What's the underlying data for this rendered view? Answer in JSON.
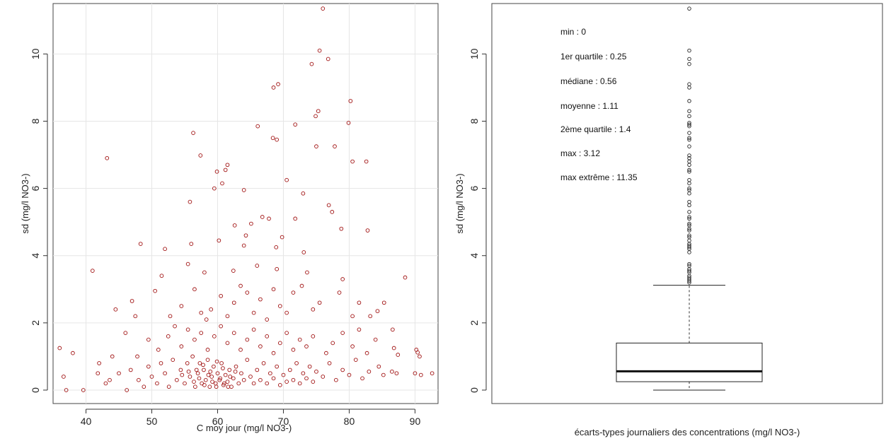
{
  "chart_data": [
    {
      "type": "scatter",
      "xlabel": "C moy jour (mg/l NO3-)",
      "ylabel": "sd (mg/l NO3-)",
      "xlim": [
        35,
        93.5
      ],
      "ylim": [
        -0.4,
        11.5
      ],
      "xticks": [
        40,
        50,
        60,
        70,
        80,
        90
      ],
      "yticks": [
        0,
        2,
        4,
        6,
        8,
        10
      ],
      "grid": true,
      "point_color": "#a01010",
      "points": [
        [
          76.0,
          11.35
        ],
        [
          75.5,
          10.1
        ],
        [
          76.8,
          9.85
        ],
        [
          74.3,
          9.7
        ],
        [
          69.2,
          9.1
        ],
        [
          68.5,
          9.0
        ],
        [
          80.2,
          8.6
        ],
        [
          75.3,
          8.3
        ],
        [
          74.9,
          8.15
        ],
        [
          71.8,
          7.9
        ],
        [
          79.9,
          7.95
        ],
        [
          66.1,
          7.85
        ],
        [
          56.3,
          7.65
        ],
        [
          68.4,
          7.5
        ],
        [
          69.0,
          7.45
        ],
        [
          75.0,
          7.25
        ],
        [
          77.8,
          7.25
        ],
        [
          57.4,
          6.98
        ],
        [
          43.2,
          6.9
        ],
        [
          82.6,
          6.8
        ],
        [
          80.5,
          6.8
        ],
        [
          61.5,
          6.7
        ],
        [
          59.9,
          6.5
        ],
        [
          61.2,
          6.55
        ],
        [
          70.5,
          6.25
        ],
        [
          60.7,
          6.15
        ],
        [
          59.5,
          6.0
        ],
        [
          64.0,
          5.95
        ],
        [
          73.0,
          5.85
        ],
        [
          55.8,
          5.6
        ],
        [
          76.9,
          5.5
        ],
        [
          77.4,
          5.3
        ],
        [
          71.8,
          5.1
        ],
        [
          66.8,
          5.15
        ],
        [
          67.8,
          5.1
        ],
        [
          78.8,
          4.8
        ],
        [
          82.8,
          4.75
        ],
        [
          62.6,
          4.9
        ],
        [
          65.1,
          4.95
        ],
        [
          64.3,
          4.6
        ],
        [
          69.8,
          4.55
        ],
        [
          48.3,
          4.35
        ],
        [
          52.0,
          4.2
        ],
        [
          56.0,
          4.35
        ],
        [
          60.2,
          4.45
        ],
        [
          64.0,
          4.3
        ],
        [
          68.9,
          4.25
        ],
        [
          73.1,
          4.1
        ],
        [
          41.0,
          3.55
        ],
        [
          55.5,
          3.75
        ],
        [
          58.0,
          3.5
        ],
        [
          62.4,
          3.55
        ],
        [
          66.0,
          3.7
        ],
        [
          69.0,
          3.6
        ],
        [
          73.6,
          3.5
        ],
        [
          79.0,
          3.3
        ],
        [
          88.5,
          3.35
        ],
        [
          85.3,
          2.6
        ],
        [
          44.5,
          2.4
        ],
        [
          47.0,
          2.65
        ],
        [
          47.5,
          2.2
        ],
        [
          50.5,
          2.95
        ],
        [
          51.5,
          3.4
        ],
        [
          52.8,
          2.2
        ],
        [
          54.5,
          2.5
        ],
        [
          56.5,
          3.0
        ],
        [
          57.5,
          2.3
        ],
        [
          58.3,
          2.1
        ],
        [
          59.0,
          2.4
        ],
        [
          60.5,
          2.8
        ],
        [
          61.5,
          2.2
        ],
        [
          62.5,
          2.6
        ],
        [
          63.5,
          3.1
        ],
        [
          64.5,
          2.9
        ],
        [
          65.5,
          2.3
        ],
        [
          66.5,
          2.7
        ],
        [
          67.5,
          2.1
        ],
        [
          68.5,
          3.0
        ],
        [
          69.5,
          2.5
        ],
        [
          70.5,
          2.3
        ],
        [
          71.5,
          2.9
        ],
        [
          72.8,
          3.1
        ],
        [
          74.5,
          2.4
        ],
        [
          75.5,
          2.6
        ],
        [
          78.5,
          2.9
        ],
        [
          80.5,
          2.2
        ],
        [
          81.5,
          2.6
        ],
        [
          83.2,
          2.2
        ],
        [
          84.3,
          2.35
        ],
        [
          86.6,
          1.8
        ],
        [
          36.0,
          1.25
        ],
        [
          38.0,
          1.1
        ],
        [
          42.0,
          0.8
        ],
        [
          44.0,
          1.0
        ],
        [
          46.0,
          1.7
        ],
        [
          47.8,
          1.0
        ],
        [
          49.5,
          1.5
        ],
        [
          51.0,
          1.2
        ],
        [
          52.5,
          1.6
        ],
        [
          53.5,
          1.9
        ],
        [
          54.5,
          1.3
        ],
        [
          55.5,
          1.8
        ],
        [
          56.5,
          1.5
        ],
        [
          57.5,
          1.7
        ],
        [
          58.5,
          1.2
        ],
        [
          59.5,
          1.6
        ],
        [
          60.5,
          1.9
        ],
        [
          61.5,
          1.4
        ],
        [
          62.5,
          1.7
        ],
        [
          63.5,
          1.2
        ],
        [
          64.5,
          1.5
        ],
        [
          65.5,
          1.8
        ],
        [
          66.5,
          1.3
        ],
        [
          67.5,
          1.6
        ],
        [
          68.5,
          1.1
        ],
        [
          69.5,
          1.4
        ],
        [
          70.5,
          1.7
        ],
        [
          71.5,
          1.2
        ],
        [
          72.5,
          1.5
        ],
        [
          73.5,
          1.3
        ],
        [
          74.5,
          1.6
        ],
        [
          76.5,
          1.1
        ],
        [
          77.5,
          1.4
        ],
        [
          79.0,
          1.7
        ],
        [
          80.5,
          1.3
        ],
        [
          81.5,
          1.8
        ],
        [
          82.7,
          1.1
        ],
        [
          84.0,
          1.5
        ],
        [
          86.8,
          1.25
        ],
        [
          87.4,
          1.05
        ],
        [
          90.2,
          1.2
        ],
        [
          90.7,
          1.0
        ],
        [
          90.4,
          1.12
        ],
        [
          36.6,
          0.4
        ],
        [
          37.0,
          0.0
        ],
        [
          39.6,
          0.0
        ],
        [
          41.8,
          0.5
        ],
        [
          43.0,
          0.2
        ],
        [
          43.6,
          0.3
        ],
        [
          45.0,
          0.5
        ],
        [
          46.2,
          0.0
        ],
        [
          46.8,
          0.6
        ],
        [
          48.0,
          0.3
        ],
        [
          48.8,
          0.1
        ],
        [
          49.5,
          0.7
        ],
        [
          50.0,
          0.4
        ],
        [
          50.8,
          0.2
        ],
        [
          51.4,
          0.8
        ],
        [
          52.0,
          0.5
        ],
        [
          52.6,
          0.1
        ],
        [
          53.2,
          0.9
        ],
        [
          53.8,
          0.3
        ],
        [
          54.4,
          0.6
        ],
        [
          55.0,
          0.2
        ],
        [
          55.4,
          0.8
        ],
        [
          55.8,
          0.4
        ],
        [
          56.2,
          1.0
        ],
        [
          56.6,
          0.1
        ],
        [
          57.0,
          0.5
        ],
        [
          57.3,
          0.8
        ],
        [
          57.6,
          0.2
        ],
        [
          57.9,
          0.6
        ],
        [
          58.2,
          0.3
        ],
        [
          58.5,
          0.9
        ],
        [
          58.8,
          0.1
        ],
        [
          59.1,
          0.4
        ],
        [
          59.4,
          0.7
        ],
        [
          59.7,
          0.2
        ],
        [
          60.0,
          0.5
        ],
        [
          60.3,
          0.3
        ],
        [
          60.6,
          0.8
        ],
        [
          60.9,
          0.15
        ],
        [
          61.2,
          0.45
        ],
        [
          61.5,
          0.25
        ],
        [
          61.8,
          0.6
        ],
        [
          62.1,
          0.1
        ],
        [
          62.4,
          0.35
        ],
        [
          62.8,
          0.7
        ],
        [
          63.2,
          0.2
        ],
        [
          63.6,
          0.5
        ],
        [
          64.0,
          0.3
        ],
        [
          64.5,
          0.9
        ],
        [
          65.0,
          0.4
        ],
        [
          65.5,
          0.2
        ],
        [
          66.0,
          0.6
        ],
        [
          66.5,
          0.3
        ],
        [
          67.0,
          0.8
        ],
        [
          67.5,
          0.2
        ],
        [
          68.0,
          0.5
        ],
        [
          68.5,
          0.35
        ],
        [
          69.0,
          0.7
        ],
        [
          69.5,
          0.15
        ],
        [
          70.0,
          0.45
        ],
        [
          70.5,
          0.25
        ],
        [
          71.0,
          0.6
        ],
        [
          71.5,
          0.3
        ],
        [
          72.0,
          0.8
        ],
        [
          72.5,
          0.2
        ],
        [
          73.0,
          0.5
        ],
        [
          73.5,
          0.35
        ],
        [
          74.0,
          0.7
        ],
        [
          74.5,
          0.25
        ],
        [
          75.0,
          0.55
        ],
        [
          76.0,
          0.4
        ],
        [
          77.0,
          0.8
        ],
        [
          78.0,
          0.3
        ],
        [
          79.0,
          0.6
        ],
        [
          80.0,
          0.45
        ],
        [
          81.0,
          0.9
        ],
        [
          82.0,
          0.35
        ],
        [
          83.0,
          0.55
        ],
        [
          84.5,
          0.7
        ],
        [
          85.2,
          0.45
        ],
        [
          86.5,
          0.55
        ],
        [
          87.2,
          0.5
        ],
        [
          90.0,
          0.5
        ],
        [
          90.9,
          0.45
        ],
        [
          92.6,
          0.5
        ],
        [
          56.4,
          0.25
        ],
        [
          57.2,
          0.35
        ],
        [
          58.0,
          0.15
        ],
        [
          58.6,
          0.45
        ],
        [
          59.2,
          0.25
        ],
        [
          59.8,
          0.1
        ],
        [
          60.4,
          0.35
        ],
        [
          61.0,
          0.2
        ],
        [
          61.6,
          0.1
        ],
        [
          56.8,
          0.6
        ],
        [
          57.8,
          0.75
        ],
        [
          58.9,
          0.55
        ],
        [
          59.9,
          0.85
        ],
        [
          60.8,
          0.65
        ],
        [
          61.9,
          0.4
        ],
        [
          62.7,
          0.55
        ],
        [
          55.6,
          0.55
        ],
        [
          54.6,
          0.45
        ]
      ]
    },
    {
      "type": "box",
      "xlabel": "écarts-types journaliers des concentrations (mg/l NO3-)",
      "ylabel": "sd (mg/l NO3-)",
      "ylim": [
        -0.4,
        11.5
      ],
      "yticks": [
        0,
        2,
        4,
        6,
        8,
        10
      ],
      "stats": {
        "min": 0,
        "q1": 0.25,
        "median": 0.56,
        "q3": 1.4,
        "whisker_high": 3.12,
        "max": 11.35
      },
      "outliers": [
        11.35,
        10.1,
        9.85,
        9.7,
        9.1,
        9.0,
        8.6,
        8.3,
        8.15,
        7.95,
        7.9,
        7.85,
        7.65,
        7.5,
        7.45,
        7.25,
        6.98,
        6.9,
        6.8,
        6.7,
        6.55,
        6.5,
        6.25,
        6.15,
        6.0,
        5.95,
        5.85,
        5.6,
        5.5,
        5.3,
        5.15,
        5.1,
        4.95,
        4.9,
        4.8,
        4.75,
        4.6,
        4.55,
        4.45,
        4.35,
        4.3,
        4.25,
        4.2,
        4.1,
        3.75,
        3.7,
        3.6,
        3.55,
        3.5,
        3.4,
        3.35,
        3.3,
        3.25,
        3.2
      ],
      "annotations": [
        "min : 0",
        "1er quartile : 0.25",
        "médiane : 0.56",
        "moyenne : 1.11",
        "2ème quartile : 1.4",
        "max : 3.12",
        "max extrême : 11.35"
      ]
    }
  ]
}
